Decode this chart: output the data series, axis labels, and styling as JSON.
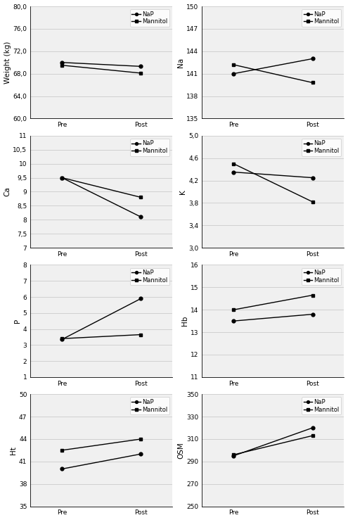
{
  "subplots": [
    {
      "ylabel": "Weight (kg)",
      "ylim": [
        60.0,
        80.0
      ],
      "yticks": [
        60.0,
        64.0,
        68.0,
        72.0,
        76.0,
        80.0
      ],
      "ytick_labels": [
        "60,0",
        "64,0",
        "68,0",
        "72,0",
        "76,0",
        "80,0"
      ],
      "nap": [
        70.0,
        69.3
      ],
      "mannitol": [
        69.5,
        68.1
      ]
    },
    {
      "ylabel": "Na",
      "ylim": [
        135,
        150
      ],
      "yticks": [
        135,
        138,
        141,
        144,
        147,
        150
      ],
      "ytick_labels": [
        "135",
        "138",
        "141",
        "144",
        "147",
        "150"
      ],
      "nap": [
        141.0,
        143.0
      ],
      "mannitol": [
        142.2,
        139.8
      ]
    },
    {
      "ylabel": "Ca",
      "ylim": [
        7,
        11
      ],
      "yticks": [
        7,
        7.5,
        8,
        8.5,
        9,
        9.5,
        10,
        10.5,
        11
      ],
      "ytick_labels": [
        "7",
        "7,5",
        "8",
        "8,5",
        "9",
        "9,5",
        "10",
        "10,5",
        "11"
      ],
      "nap": [
        9.5,
        8.1
      ],
      "mannitol": [
        9.5,
        8.8
      ]
    },
    {
      "ylabel": "K",
      "ylim": [
        3.0,
        5.0
      ],
      "yticks": [
        3.0,
        3.4,
        3.8,
        4.2,
        4.6,
        5.0
      ],
      "ytick_labels": [
        "3,0",
        "3,4",
        "3,8",
        "4,2",
        "4,6",
        "5,0"
      ],
      "nap": [
        4.35,
        4.25
      ],
      "mannitol": [
        4.5,
        3.82
      ]
    },
    {
      "ylabel": "P",
      "ylim": [
        1,
        8
      ],
      "yticks": [
        1,
        2,
        3,
        4,
        5,
        6,
        7,
        8
      ],
      "ytick_labels": [
        "1",
        "2",
        "3",
        "4",
        "5",
        "6",
        "7",
        "8"
      ],
      "nap": [
        3.35,
        5.9
      ],
      "mannitol": [
        3.4,
        3.65
      ]
    },
    {
      "ylabel": "Hb",
      "ylim": [
        11,
        16
      ],
      "yticks": [
        11,
        12,
        13,
        14,
        15,
        16
      ],
      "ytick_labels": [
        "11",
        "12",
        "13",
        "14",
        "15",
        "16"
      ],
      "nap": [
        13.5,
        13.8
      ],
      "mannitol": [
        14.0,
        14.65
      ]
    },
    {
      "ylabel": "Ht",
      "ylim": [
        35,
        50
      ],
      "yticks": [
        35,
        38,
        41,
        44,
        47,
        50
      ],
      "ytick_labels": [
        "35",
        "38",
        "41",
        "44",
        "47",
        "50"
      ],
      "nap": [
        40.0,
        42.0
      ],
      "mannitol": [
        42.5,
        44.0
      ]
    },
    {
      "ylabel": "OSM",
      "ylim": [
        250,
        350
      ],
      "yticks": [
        250,
        270,
        290,
        310,
        330,
        350
      ],
      "ytick_labels": [
        "250",
        "270",
        "290",
        "310",
        "330",
        "350"
      ],
      "nap": [
        295.0,
        320.0
      ],
      "mannitol": [
        296.0,
        313.0
      ]
    }
  ],
  "xticks": [
    "Pre",
    "Post"
  ],
  "line_color": "black",
  "marker_nap": "o",
  "marker_mannitol": "s",
  "legend_nap": "NaP",
  "legend_mannitol": "Mannitol",
  "grid_color": "#cccccc",
  "bg_color": "#f0f0f0"
}
